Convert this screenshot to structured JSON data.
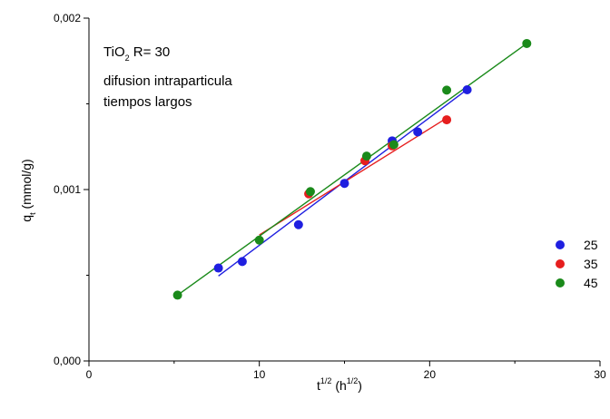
{
  "chart_data": {
    "type": "scatter",
    "annotation": {
      "line1_prefix": "TiO",
      "line1_sub": "2",
      "line1_suffix": " R= 30",
      "line2": "difusion intraparticula",
      "line3": "tiempos largos"
    },
    "xlabel": {
      "base": "t",
      "sup": "1/2",
      "unit_open": " (h",
      "unit_sup": "1/2",
      "unit_close": ")"
    },
    "ylabel": {
      "base": "q",
      "sub": "t",
      "rest": " (mmol/g)"
    },
    "xlim": [
      0,
      30
    ],
    "ylim": [
      0,
      0.002
    ],
    "x_ticks": [
      0,
      10,
      20,
      30
    ],
    "x_tick_labels": [
      "0",
      "10",
      "20",
      "30"
    ],
    "y_ticks": [
      0,
      0.001,
      0.002
    ],
    "y_tick_labels": [
      "0,000",
      "0,001",
      "0,002"
    ],
    "grid": false,
    "legend_position": "right",
    "series": [
      {
        "name": "25",
        "color": "#1f1fe0",
        "x": [
          7.6,
          9.0,
          12.3,
          15.0,
          17.8,
          19.3,
          22.2
        ],
        "y": [
          0.000542,
          0.00058,
          0.000795,
          0.001036,
          0.001284,
          0.001336,
          0.001582
        ],
        "fit": {
          "x": [
            7.6,
            22.2
          ],
          "y": [
            0.000496,
            0.001584
          ]
        }
      },
      {
        "name": "35",
        "color": "#e61e1e",
        "x": [
          12.9,
          16.2,
          17.8,
          21.0
        ],
        "y": [
          0.000975,
          0.001168,
          0.001255,
          0.001407
        ],
        "fit": {
          "x": [
            10.0,
            21.0
          ],
          "y": [
            0.000735,
            0.001417
          ]
        }
      },
      {
        "name": "45",
        "color": "#1a8a1a",
        "x": [
          5.2,
          10.0,
          13.0,
          16.3,
          17.9,
          21.0,
          25.7
        ],
        "y": [
          0.000384,
          0.000705,
          0.000988,
          0.001195,
          0.001262,
          0.00158,
          0.001852
        ],
        "fit": {
          "x": [
            5.2,
            25.7
          ],
          "y": [
            0.000384,
            0.001852
          ]
        }
      }
    ]
  }
}
